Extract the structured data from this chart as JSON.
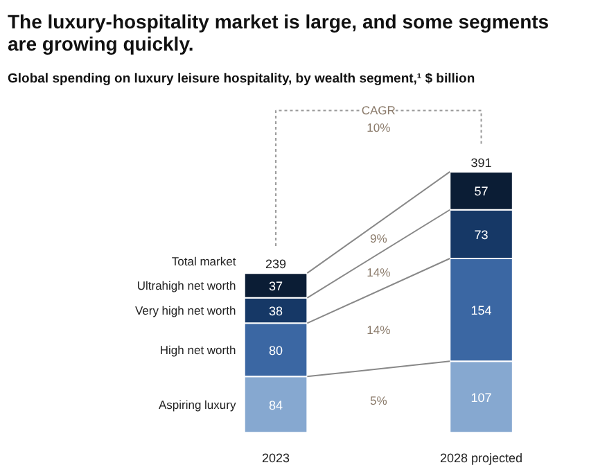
{
  "chart_data": {
    "type": "bar",
    "stacked": true,
    "data_labels": true,
    "legend": false,
    "title": "The luxury-hospitality market is large, and some segments are growing quickly.",
    "subtitle": "Global spending on luxury leisure hospitality, by wealth segment,¹ $ billion",
    "categories": [
      "2023",
      "2028 projected"
    ],
    "series": [
      {
        "name": "Aspiring luxury",
        "color": "#86a8d0",
        "values": [
          84,
          107
        ]
      },
      {
        "name": "High net worth",
        "color": "#3b67a3",
        "values": [
          80,
          154
        ]
      },
      {
        "name": "Very high net worth",
        "color": "#163866",
        "values": [
          38,
          73
        ]
      },
      {
        "name": "Ultrahigh net worth",
        "color": "#0b1d35",
        "values": [
          37,
          57
        ]
      }
    ],
    "totals": [
      "239",
      "391"
    ],
    "annotations": [
      "Total market",
      "CAGR",
      "10%",
      "9%",
      "14%",
      "14%",
      "5%"
    ]
  }
}
